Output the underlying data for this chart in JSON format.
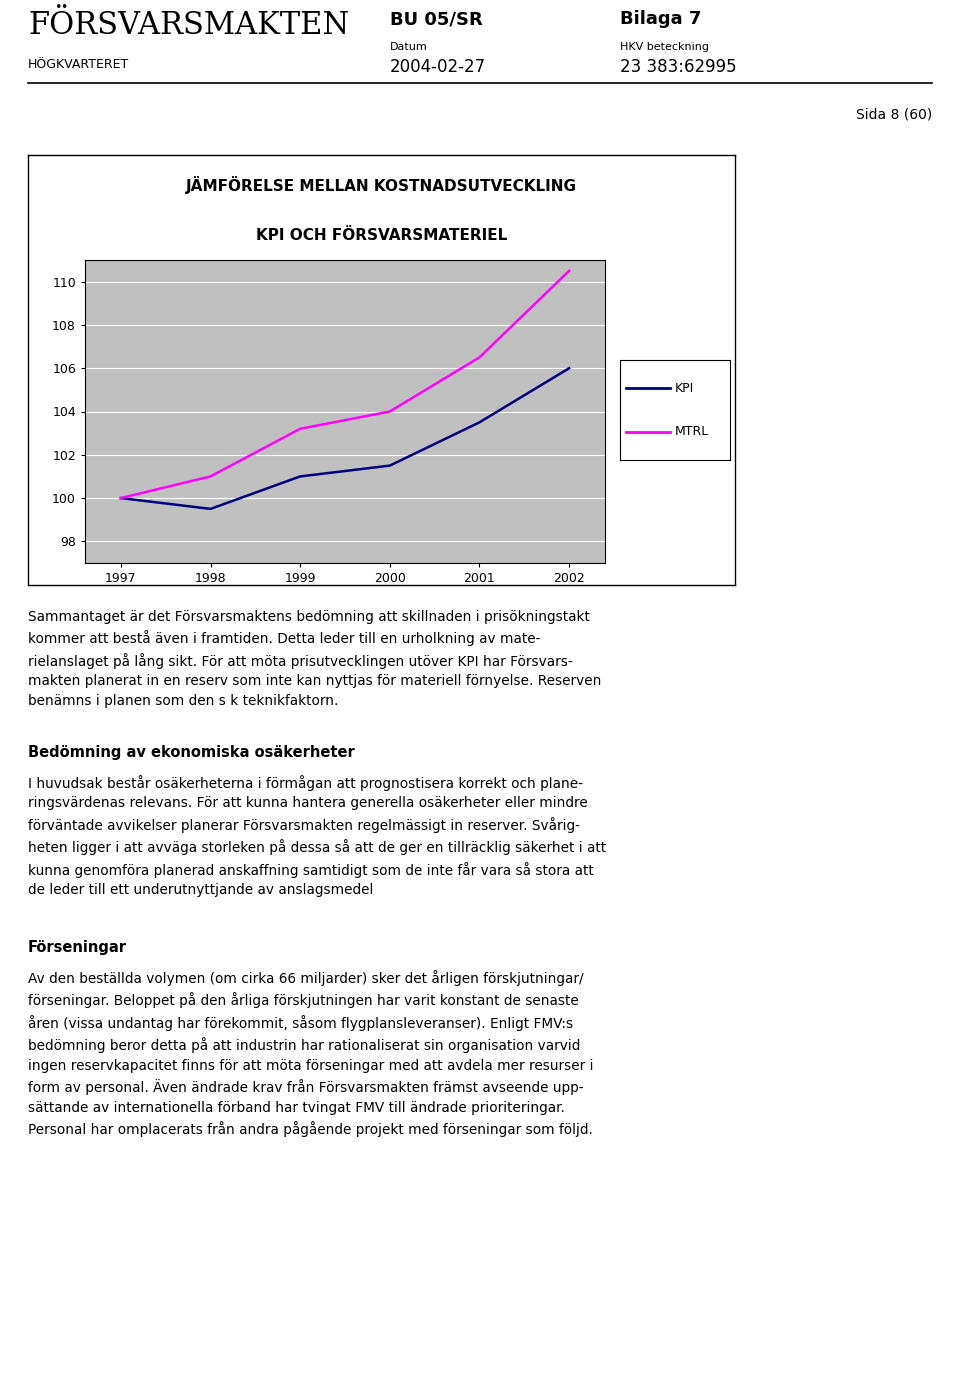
{
  "title_line1": "JÄMFÖRELSE MELLAN KOSTNADSUTVECKLING",
  "title_line2": "KPI OCH FÖRSVARSMATERIEL",
  "header_left1": "FÖRSVARSMAKTEN",
  "header_left2": "HÖGKVARTERET",
  "header_mid1": "BU 05/SR",
  "header_mid2": "Datum",
  "header_mid3": "2004-02-27",
  "header_right1": "Bilaga 7",
  "header_right2": "HKV beteckning",
  "header_right3": "23 383:62995",
  "page_label": "Sida 8 (60)",
  "years": [
    1997,
    1998,
    1999,
    2000,
    2001,
    2002
  ],
  "kpi_values": [
    100.0,
    99.5,
    101.0,
    101.5,
    103.5,
    106.0
  ],
  "mtrl_values": [
    100.0,
    101.0,
    103.2,
    104.0,
    106.5,
    110.5
  ],
  "ylim": [
    97,
    111
  ],
  "yticks": [
    98,
    100,
    102,
    104,
    106,
    108,
    110
  ],
  "kpi_color": "#000080",
  "mtrl_color": "#FF00FF",
  "plot_bg_color": "#C0C0C0",
  "legend_kpi": "KPI",
  "legend_mtrl": "MTRL",
  "para1": "Sammantaget är det Försvarsmaktens bedömning att skillnaden i prisökningstakt\nkommer att bestå även i framtiden. Detta leder till en urholkning av mate-\nrielanslaget på lång sikt. För att möta prisutvecklingen utöver KPI har Försvars-\nmakten planerat in en reserv som inte kan nyttjas för materiell förnyelse. Reserven\nbenämns i planen som den s k teknikfaktorn.",
  "heading2": "Bedömning av ekonomiska osäkerheter",
  "para2": "I huvudsak består osäkerheterna i förmågan att prognostisera korrekt och plane-\nringsvärdenas relevans. För att kunna hantera generella osäkerheter eller mindre\nförväntade avvikelser planerar Försvarsmakten regelmässigt in reserver. Svårig-\nheten ligger i att avväga storleken på dessa så att de ger en tillräcklig säkerhet i att\nkunna genomföra planerad anskaffning samtidigt som de inte får vara så stora att\nde leder till ett underutnyttjande av anslagsmedel",
  "heading3": "Förseningar",
  "para3": "Av den beställda volymen (om cirka 66 miljarder) sker det årligen förskjutningar/\nförseningar. Beloppet på den årliga förskjutningen har varit konstant de senaste\nåren (vissa undantag har förekommit, såsom flygplansleveranser). Enligt FMV:s\nbedömning beror detta på att industrin har rationaliserat sin organisation varvid\ningen reservkapacitet finns för att möta förseningar med att avdela mer resurser i\nform av personal. Även ändrade krav från Försvarsmakten främst avseende upp-\nsättande av internationella förband har tvingat FMV till ändrade prioriteringar.\nPersonal har omplacerats från andra pågående projekt med förseningar som följd."
}
